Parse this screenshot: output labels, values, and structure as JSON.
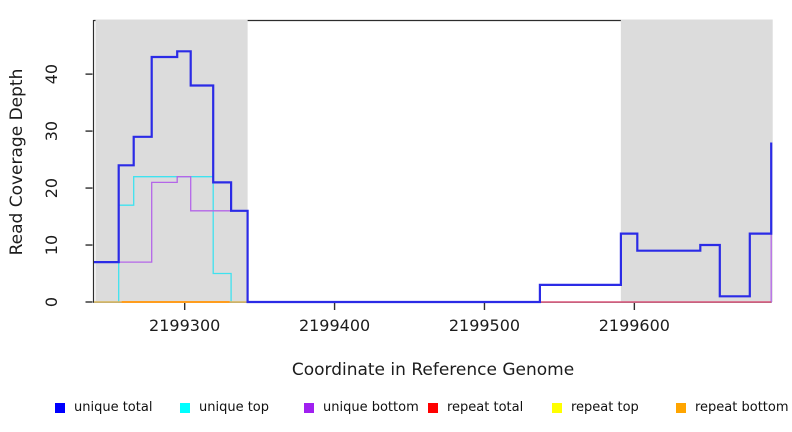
{
  "chart_data": {
    "type": "line",
    "subtype": "step",
    "title": "",
    "xlabel": "Coordinate in Reference Genome",
    "ylabel": "Read Coverage Depth",
    "x_axis": {
      "lim": [
        2199239.5,
        2199691.3
      ],
      "ticks": [
        2199300,
        2199400,
        2199500,
        2199600
      ]
    },
    "y_axis": {
      "lim": [
        0,
        49.5
      ],
      "ticks": [
        0,
        10,
        20,
        30,
        40
      ]
    },
    "grid": "off",
    "shaded_region_color": "#dcdcdc",
    "shaded_regions": [
      {
        "x0": 2199240.5,
        "x1": 2199342
      },
      {
        "x0": 2199591,
        "x1": 2199691.3
      }
    ],
    "series": [
      {
        "name": "unique top",
        "color": "#00ffff",
        "line_color": "#3fe2ef",
        "width": 1.3,
        "steps": [
          [
            2199239.5,
            0
          ],
          [
            2199256,
            17
          ],
          [
            2199266,
            22
          ],
          [
            2199319,
            5
          ],
          [
            2199331,
            0
          ]
        ],
        "xend": 2199342
      },
      {
        "name": "unique bottom",
        "color": "#a020f0",
        "line_color": "#b466e8",
        "width": 1.3,
        "steps": [
          [
            2199239.5,
            7
          ],
          [
            2199278,
            21
          ],
          [
            2199295,
            22
          ],
          [
            2199304,
            16
          ],
          [
            2199342,
            0
          ],
          [
            2199691.3,
            12
          ]
        ],
        "xend": 2199691.3
      },
      {
        "name": "repeat total",
        "color": "#ff0000",
        "line_color": "#e04b66",
        "width": 1.2,
        "steps": [
          [
            2199239.5,
            0
          ]
        ],
        "xend": 2199691.3
      },
      {
        "name": "repeat top",
        "color": "#ffff00",
        "line_color": "#e6ec52",
        "width": 1.4,
        "opacity": 0.65,
        "steps": [
          [
            2199239.5,
            0
          ]
        ],
        "xend": 2199342
      },
      {
        "name": "repeat bottom",
        "color": "#ffa500",
        "line_color": "#ff9d1e",
        "width": 1.9,
        "steps": [
          [
            2199258,
            0
          ]
        ],
        "xend": 2199330
      },
      {
        "name": "unique total",
        "color": "#0000ff",
        "line_color": "#2b2be6",
        "width": 2.2,
        "steps": [
          [
            2199239.5,
            7
          ],
          [
            2199256,
            24
          ],
          [
            2199266,
            29
          ],
          [
            2199278,
            43
          ],
          [
            2199295,
            44
          ],
          [
            2199304,
            38
          ],
          [
            2199319,
            21
          ],
          [
            2199331,
            16
          ],
          [
            2199342,
            0
          ],
          [
            2199537,
            3
          ],
          [
            2199591,
            12
          ],
          [
            2199602,
            9
          ],
          [
            2199644,
            10
          ],
          [
            2199657,
            1
          ],
          [
            2199677,
            12
          ],
          [
            2199691.3,
            28
          ]
        ],
        "xend": 2199691.3
      }
    ],
    "legend": {
      "position": "bottom",
      "items": [
        {
          "label": "unique total",
          "color": "#0000ff"
        },
        {
          "label": "unique top",
          "color": "#00ffff"
        },
        {
          "label": "unique bottom",
          "color": "#a020f0"
        },
        {
          "label": "repeat total",
          "color": "#ff0000"
        },
        {
          "label": "repeat top",
          "color": "#ffff00"
        },
        {
          "label": "repeat bottom",
          "color": "#ffa500"
        }
      ]
    }
  }
}
